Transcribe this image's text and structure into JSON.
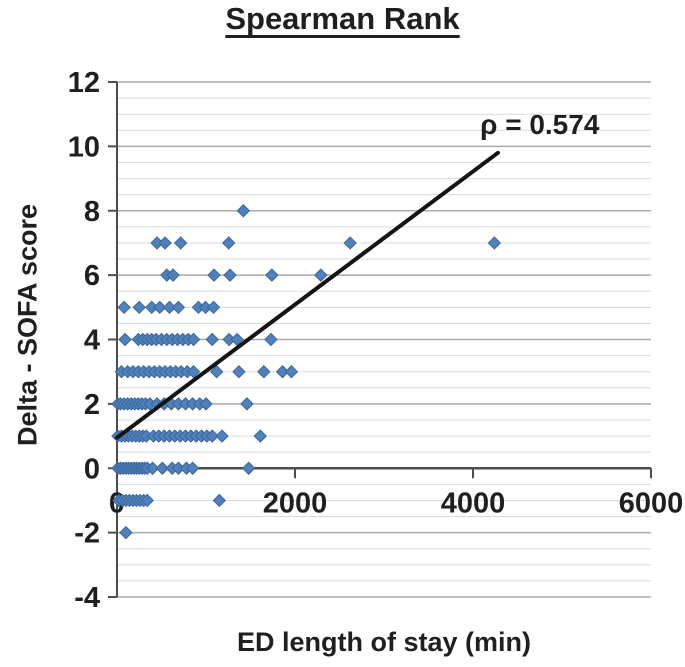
{
  "figure": {
    "title": "Spearman Rank"
  },
  "chart_data": {
    "type": "scatter",
    "title": "Spearman Rank",
    "xlabel": "ED length of stay (min)",
    "ylabel": "Delta - SOFA score",
    "xlim": [
      0,
      6000
    ],
    "ylim": [
      -4,
      12
    ],
    "x_ticks": [
      0,
      2000,
      4000,
      6000
    ],
    "y_ticks": [
      12,
      10,
      8,
      6,
      4,
      2,
      0,
      -2,
      -4
    ],
    "major_gridline_step": 2,
    "minor_gridline_step": 0.5,
    "grid": true,
    "legend": false,
    "annotation": {
      "text": "ρ = 0.574",
      "x": 4750,
      "y": 10.7
    },
    "marker": {
      "shape": "diamond",
      "color": "#4f81bd",
      "border_color": "#3b6596",
      "size": 12
    },
    "trendline": {
      "x1": 0,
      "y1": 0.95,
      "x2": 4280,
      "y2": 9.8,
      "color": "#141414",
      "width": 4
    },
    "colors": {
      "minor_grid": "#dadada",
      "major_grid": "#ababab",
      "axis": "#4d4d4d",
      "text": "#1f1f1f",
      "background": "#ffffff"
    },
    "points": [
      [
        1420,
        8
      ],
      [
        450,
        7
      ],
      [
        540,
        7
      ],
      [
        715,
        7
      ],
      [
        1255,
        7
      ],
      [
        2620,
        7
      ],
      [
        4240,
        7
      ],
      [
        560,
        6
      ],
      [
        630,
        6
      ],
      [
        1090,
        6
      ],
      [
        1270,
        6
      ],
      [
        1740,
        6
      ],
      [
        2290,
        6
      ],
      [
        80,
        5
      ],
      [
        250,
        5
      ],
      [
        390,
        5
      ],
      [
        480,
        5
      ],
      [
        590,
        5
      ],
      [
        690,
        5
      ],
      [
        915,
        5
      ],
      [
        995,
        5
      ],
      [
        1085,
        5
      ],
      [
        90,
        4
      ],
      [
        240,
        4
      ],
      [
        290,
        4
      ],
      [
        340,
        4
      ],
      [
        390,
        4
      ],
      [
        440,
        4
      ],
      [
        500,
        4
      ],
      [
        560,
        4
      ],
      [
        620,
        4
      ],
      [
        680,
        4
      ],
      [
        740,
        4
      ],
      [
        800,
        4
      ],
      [
        860,
        4
      ],
      [
        1070,
        4
      ],
      [
        1260,
        4
      ],
      [
        1350,
        4
      ],
      [
        1730,
        4
      ],
      [
        50,
        3
      ],
      [
        120,
        3
      ],
      [
        180,
        3
      ],
      [
        240,
        3
      ],
      [
        300,
        3
      ],
      [
        360,
        3
      ],
      [
        420,
        3
      ],
      [
        480,
        3
      ],
      [
        540,
        3
      ],
      [
        600,
        3
      ],
      [
        660,
        3
      ],
      [
        720,
        3
      ],
      [
        790,
        3
      ],
      [
        860,
        3
      ],
      [
        1120,
        3
      ],
      [
        1370,
        3
      ],
      [
        1650,
        3
      ],
      [
        1860,
        3
      ],
      [
        1960,
        3
      ],
      [
        10,
        2
      ],
      [
        40,
        2
      ],
      [
        80,
        2
      ],
      [
        120,
        2
      ],
      [
        160,
        2
      ],
      [
        200,
        2
      ],
      [
        240,
        2
      ],
      [
        280,
        2
      ],
      [
        320,
        2
      ],
      [
        370,
        2
      ],
      [
        450,
        2
      ],
      [
        530,
        2
      ],
      [
        610,
        2
      ],
      [
        690,
        2
      ],
      [
        770,
        2
      ],
      [
        850,
        2
      ],
      [
        930,
        2
      ],
      [
        1000,
        2
      ],
      [
        1460,
        2
      ],
      [
        10,
        1
      ],
      [
        50,
        1
      ],
      [
        90,
        1
      ],
      [
        130,
        1
      ],
      [
        170,
        1
      ],
      [
        210,
        1
      ],
      [
        250,
        1
      ],
      [
        290,
        1
      ],
      [
        330,
        1
      ],
      [
        410,
        1
      ],
      [
        470,
        1
      ],
      [
        530,
        1
      ],
      [
        590,
        1
      ],
      [
        650,
        1
      ],
      [
        710,
        1
      ],
      [
        770,
        1
      ],
      [
        830,
        1
      ],
      [
        890,
        1
      ],
      [
        950,
        1
      ],
      [
        1010,
        1
      ],
      [
        1070,
        1
      ],
      [
        1180,
        1
      ],
      [
        1610,
        1
      ],
      [
        10,
        0
      ],
      [
        40,
        0
      ],
      [
        70,
        0
      ],
      [
        100,
        0
      ],
      [
        130,
        0
      ],
      [
        160,
        0
      ],
      [
        190,
        0
      ],
      [
        220,
        0
      ],
      [
        250,
        0
      ],
      [
        280,
        0
      ],
      [
        310,
        0
      ],
      [
        340,
        0
      ],
      [
        400,
        0
      ],
      [
        510,
        0
      ],
      [
        620,
        0
      ],
      [
        690,
        0
      ],
      [
        780,
        0
      ],
      [
        850,
        0
      ],
      [
        1480,
        0
      ],
      [
        20,
        -1
      ],
      [
        60,
        -1
      ],
      [
        100,
        -1
      ],
      [
        140,
        -1
      ],
      [
        180,
        -1
      ],
      [
        220,
        -1
      ],
      [
        260,
        -1
      ],
      [
        300,
        -1
      ],
      [
        340,
        -1
      ],
      [
        1150,
        -1
      ],
      [
        100,
        -2
      ]
    ]
  }
}
